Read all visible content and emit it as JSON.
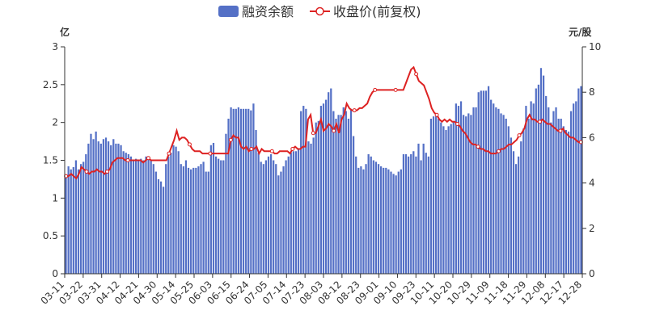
{
  "chart_data": {
    "type": "bar+line",
    "legend": {
      "placement": "top-center",
      "items": [
        {
          "name": "融资余额",
          "marker": "rounded-rect",
          "color": "#5470c6"
        },
        {
          "name": "收盘价(前复权)",
          "marker": "circle-line",
          "color": "#dd2222"
        }
      ]
    },
    "left_axis": {
      "unit": "亿",
      "min": 0,
      "max": 3,
      "ticks": [
        "0",
        "0.5",
        "1",
        "1.5",
        "2",
        "2.5",
        "3"
      ]
    },
    "right_axis": {
      "unit": "元/股",
      "min": 0,
      "max": 10,
      "ticks": [
        "0",
        "2",
        "4",
        "6",
        "8",
        "10"
      ]
    },
    "x_tick_labels": [
      "03-11",
      "03-22",
      "03-31",
      "04-12",
      "04-21",
      "04-30",
      "05-14",
      "05-25",
      "06-03",
      "06-15",
      "06-24",
      "07-05",
      "07-14",
      "07-23",
      "08-03",
      "08-12",
      "08-23",
      "09-01",
      "09-10",
      "09-23",
      "10-11",
      "10-20",
      "10-29",
      "11-09",
      "11-18",
      "11-29",
      "12-08",
      "12-17",
      "12-28"
    ],
    "grid": false,
    "series": [
      {
        "name": "融资余额",
        "type": "bar",
        "axis": "left",
        "values": [
          1.3,
          1.42,
          1.38,
          1.41,
          1.5,
          1.38,
          1.45,
          1.48,
          1.58,
          1.72,
          1.85,
          1.78,
          1.88,
          1.75,
          1.72,
          1.78,
          1.8,
          1.75,
          1.7,
          1.78,
          1.72,
          1.72,
          1.7,
          1.62,
          1.6,
          1.58,
          1.55,
          1.5,
          1.52,
          1.5,
          1.52,
          1.5,
          1.55,
          1.53,
          1.5,
          1.45,
          1.35,
          1.25,
          1.22,
          1.15,
          1.45,
          1.55,
          1.6,
          1.7,
          1.68,
          1.62,
          1.45,
          1.42,
          1.5,
          1.4,
          1.38,
          1.4,
          1.4,
          1.42,
          1.45,
          1.48,
          1.35,
          1.35,
          1.7,
          1.73,
          1.55,
          1.52,
          1.5,
          1.5,
          1.85,
          2.05,
          2.2,
          2.18,
          2.18,
          2.2,
          2.18,
          2.18,
          2.18,
          2.18,
          2.16,
          2.25,
          1.9,
          1.6,
          1.48,
          1.45,
          1.5,
          1.55,
          1.58,
          1.5,
          1.45,
          1.3,
          1.35,
          1.42,
          1.5,
          1.55,
          1.6,
          1.62,
          1.62,
          1.65,
          2.15,
          2.22,
          2.18,
          1.75,
          1.72,
          1.8,
          2.0,
          2.02,
          2.22,
          2.25,
          2.3,
          2.4,
          2.45,
          2.15,
          2.05,
          2.1,
          2.1,
          2.2,
          2.15,
          2.05,
          2.18,
          1.82,
          1.55,
          1.4,
          1.42,
          1.38,
          1.45,
          1.58,
          1.55,
          1.5,
          1.48,
          1.45,
          1.42,
          1.4,
          1.4,
          1.38,
          1.35,
          1.32,
          1.3,
          1.35,
          1.38,
          1.58,
          1.58,
          1.55,
          1.58,
          1.62,
          1.55,
          1.72,
          1.5,
          1.72,
          1.6,
          1.55,
          2.05,
          2.08,
          2.08,
          2.05,
          2.0,
          1.95,
          1.9,
          1.95,
          1.98,
          2.02,
          2.25,
          2.22,
          2.28,
          2.1,
          2.08,
          2.12,
          2.1,
          2.2,
          2.2,
          2.4,
          2.42,
          2.42,
          2.42,
          2.48,
          2.3,
          2.25,
          2.2,
          2.18,
          2.12,
          2.1,
          2.05,
          1.95,
          1.8,
          1.62,
          1.45,
          1.55,
          1.75,
          1.92,
          2.22,
          2.05,
          2.28,
          2.25,
          2.45,
          2.5,
          2.72,
          2.62,
          2.35,
          2.2,
          2.0,
          2.15,
          2.2,
          2.05,
          2.05,
          1.95,
          1.9,
          1.88,
          2.15,
          2.25,
          2.28,
          2.45,
          2.48
        ]
      },
      {
        "name": "收盘价(前复权)",
        "type": "line",
        "axis": "right",
        "values": [
          4.3,
          4.3,
          4.4,
          4.3,
          4.2,
          4.4,
          4.7,
          4.6,
          4.5,
          4.4,
          4.5,
          4.5,
          4.6,
          4.5,
          4.5,
          4.4,
          4.5,
          4.6,
          4.9,
          5.0,
          5.1,
          5.1,
          5.1,
          5.0,
          5.0,
          5.0,
          5.0,
          5.0,
          5.0,
          5.0,
          4.9,
          5.0,
          5.1,
          5.0,
          5.0,
          5.0,
          5.0,
          5.0,
          5.0,
          5.0,
          5.3,
          5.6,
          5.9,
          6.3,
          5.9,
          6.0,
          6.0,
          5.9,
          5.7,
          5.5,
          5.4,
          5.4,
          5.4,
          5.3,
          5.3,
          5.3,
          5.3,
          5.3,
          5.3,
          5.3,
          5.3,
          5.3,
          5.3,
          5.3,
          5.9,
          6.1,
          6.0,
          6.0,
          5.6,
          5.5,
          5.6,
          5.4,
          5.5,
          5.5,
          5.6,
          5.3,
          5.5,
          5.4,
          5.4,
          5.4,
          5.4,
          5.3,
          5.3,
          5.4,
          5.4,
          5.4,
          5.4,
          5.3,
          5.5,
          5.6,
          5.5,
          5.5,
          5.6,
          5.6,
          6.8,
          7.0,
          6.2,
          6.2,
          6.5,
          6.8,
          6.3,
          6.4,
          6.6,
          6.5,
          6.3,
          6.6,
          6.2,
          6.8,
          7.0,
          7.5,
          7.3,
          7.2,
          7.2,
          7.2,
          7.3,
          7.3,
          7.4,
          7.5,
          7.8,
          8.0,
          8.1,
          8.1,
          8.1,
          8.1,
          8.1,
          8.1,
          8.1,
          8.1,
          8.1,
          8.1,
          8.1,
          8.1,
          8.4,
          8.7,
          9.0,
          9.1,
          8.8,
          8.5,
          8.4,
          8.3,
          8.0,
          7.7,
          7.3,
          7.1,
          7.0,
          6.8,
          6.7,
          6.8,
          6.7,
          6.8,
          6.7,
          6.7,
          6.6,
          6.5,
          6.3,
          6.2,
          6.0,
          5.8,
          5.7,
          5.7,
          5.6,
          5.5,
          5.5,
          5.4,
          5.4,
          5.3,
          5.3,
          5.3,
          5.4,
          5.5,
          5.5,
          5.6,
          5.7,
          5.7,
          5.8,
          5.9,
          6.1,
          6.2,
          6.4,
          6.8,
          7.0,
          6.8,
          6.8,
          6.7,
          6.7,
          6.8,
          6.7,
          6.6,
          6.6,
          6.5,
          6.4,
          6.3,
          6.3,
          6.4,
          6.2,
          6.1,
          6.0,
          6.0,
          5.9,
          5.8,
          5.8
        ]
      }
    ]
  }
}
